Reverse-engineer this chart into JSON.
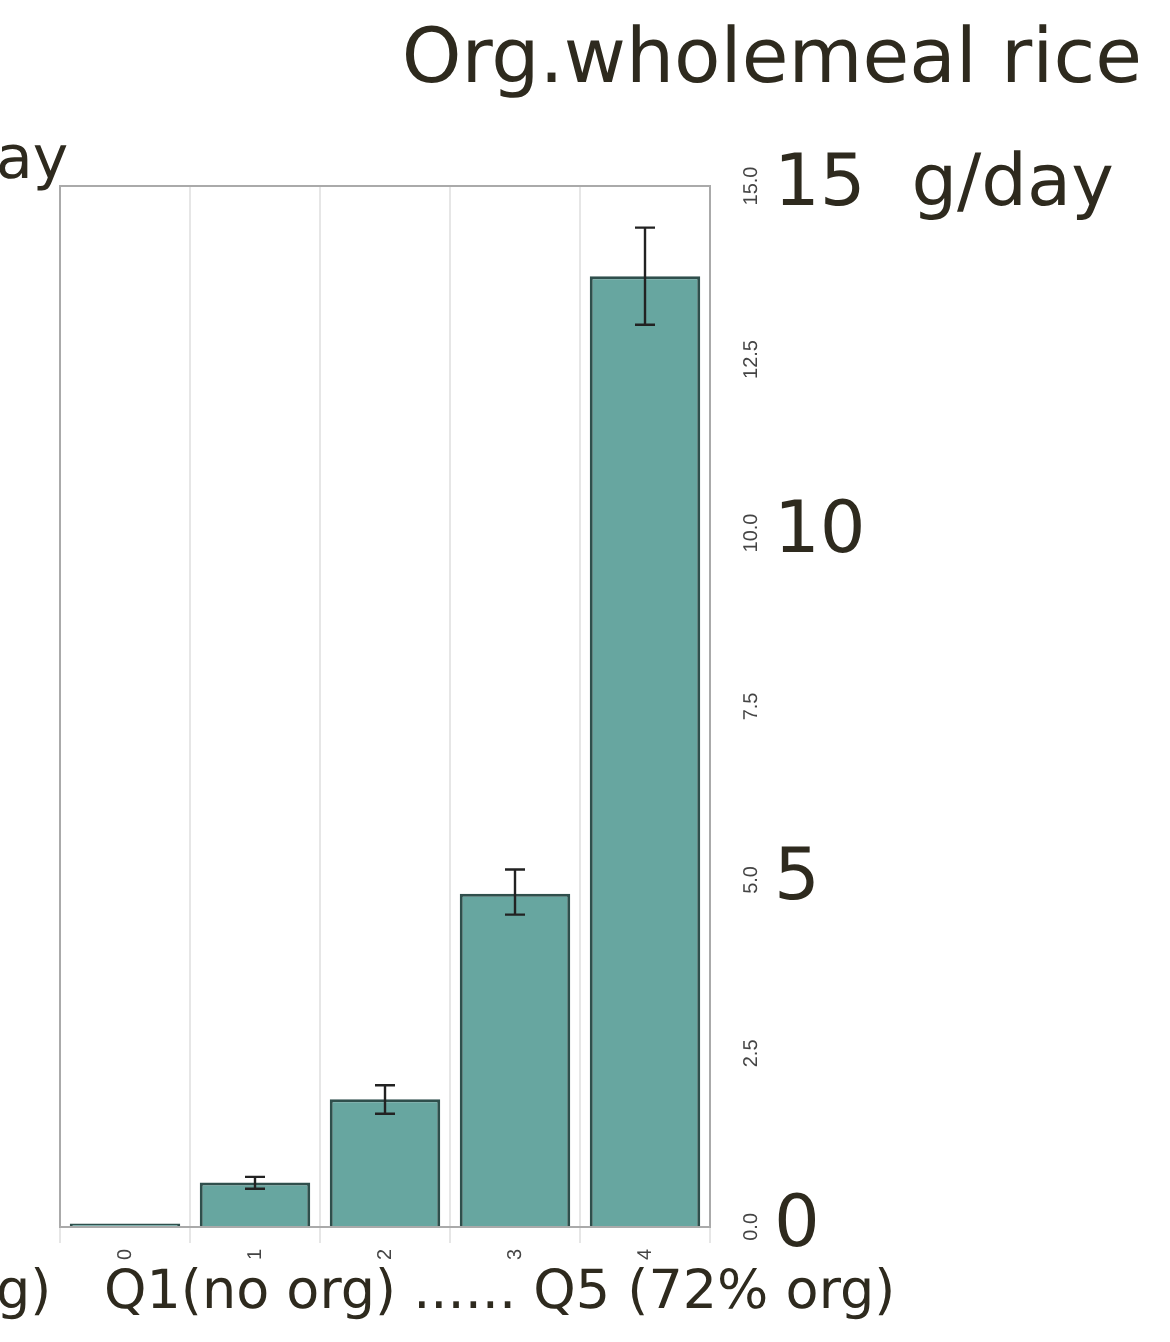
{
  "chart_data": {
    "type": "bar",
    "title": "Org.wholemeal rice",
    "xlabel": "Q1(no org) ...... Q5 (72% org)",
    "annotations": [
      "ay",
      "g)"
    ],
    "categories": [
      "0",
      "1",
      "2",
      "3",
      "4"
    ],
    "values": [
      0.05,
      0.64,
      1.84,
      4.8,
      13.7
    ],
    "errors": [
      null,
      [
        0.55,
        0.72
      ],
      [
        1.63,
        2.04
      ],
      [
        4.5,
        5.15
      ],
      [
        13.0,
        14.4
      ]
    ],
    "color": "#67a6a0",
    "ylim": [
      0,
      15
    ],
    "yticks": [
      {
        "value": 0,
        "label": "0.0"
      },
      {
        "value": 2.5,
        "label": "2.5"
      },
      {
        "value": 5,
        "label": "5.0"
      },
      {
        "value": 7.5,
        "label": "7.5"
      },
      {
        "value": 10,
        "label": "10.0"
      },
      {
        "value": 12.5,
        "label": "12.5"
      },
      {
        "value": 15,
        "label": "15.0"
      }
    ],
    "y2lim": [
      0,
      15
    ],
    "y2ticks": [
      0,
      5,
      10,
      {
        "value": 15,
        "label": "15  g/day"
      }
    ],
    "grid": "x",
    "legend": false
  }
}
